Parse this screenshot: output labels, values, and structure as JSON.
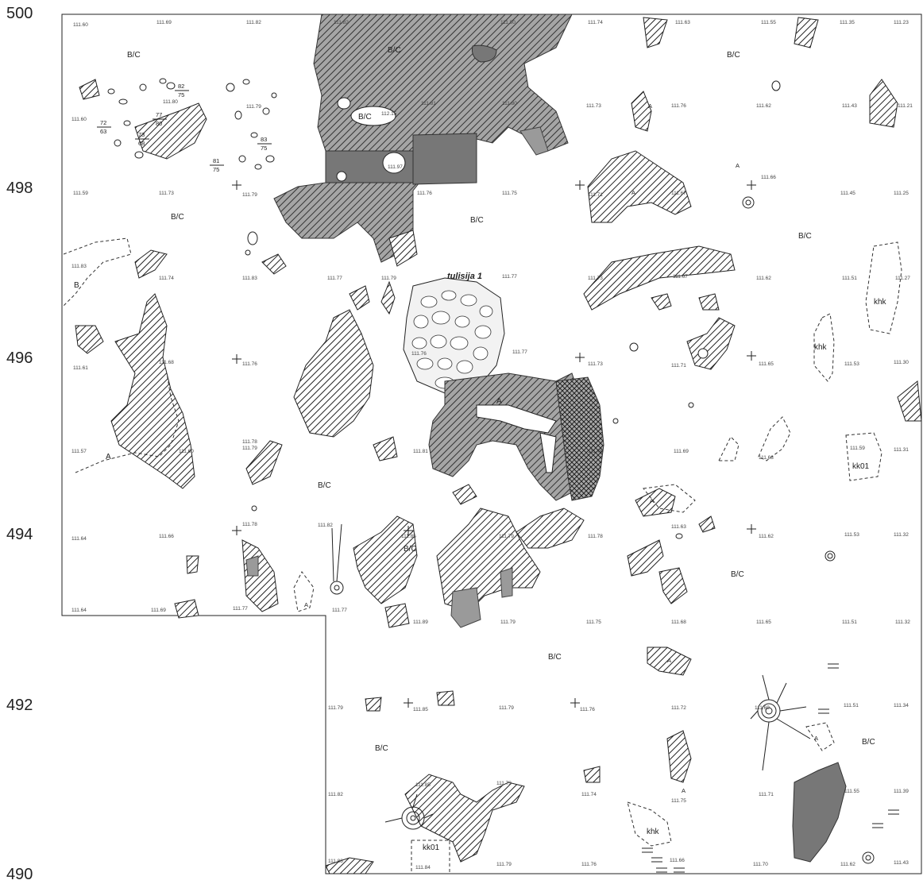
{
  "y_axis": [
    "500",
    "498",
    "496",
    "494",
    "492",
    "490"
  ],
  "special_label": "tulisija 1",
  "zone_labels": {
    "bc": "B/C",
    "a": "A",
    "b": "B",
    "khk": "khk",
    "kk01": "kk01"
  },
  "fractions": [
    {
      "num": "82",
      "den": "75"
    },
    {
      "num": "77",
      "den": "80"
    },
    {
      "num": "72",
      "den": "63"
    },
    {
      "num": "73",
      "den": "68"
    },
    {
      "num": "83",
      "den": "75"
    },
    {
      "num": "81",
      "den": "75"
    }
  ],
  "elevations": {
    "r0": [
      "111.60",
      "111.69",
      "111.82",
      "111.82",
      "111.80",
      "111.74",
      "111.63",
      "111.55",
      "111.35",
      "111.23"
    ],
    "r1": [
      "111.60",
      "111.80",
      "111.79",
      "112.15",
      "111.81",
      "111.80",
      "111.73",
      "111.76",
      "111.62",
      "111.43",
      "111.21"
    ],
    "r2": [
      "111.59",
      "111.73",
      "111.79",
      "111.97",
      "111.76",
      "111.75",
      "111.71",
      "111.67",
      "111.66",
      "111.45",
      "111.25"
    ],
    "r3": [
      "111.83",
      "111.74",
      "111.83",
      "111.77",
      "111.79",
      "111.77",
      "111.73",
      "111.67",
      "111.62",
      "111.51",
      "111.27"
    ],
    "r4": [
      "111.61",
      "111.68",
      "111.76",
      "111.76",
      "111.77",
      "111.73",
      "111.71",
      "111.65",
      "111.53",
      "111.30"
    ],
    "r5": [
      "111.57",
      "111.60",
      "111.78",
      "111.79",
      "111.81",
      "111.76",
      "111.69",
      "111.63",
      "111.59",
      "111.31"
    ],
    "r6": [
      "111.64",
      "111.66",
      "111.78",
      "111.82",
      "111.85",
      "111.79",
      "111.78",
      "111.63",
      "111.62",
      "111.53",
      "111.32"
    ],
    "r7": [
      "111.64",
      "111.69",
      "111.77",
      "111.77",
      "111.89",
      "111.79",
      "111.75",
      "111.68",
      "111.65",
      "111.51",
      "111.32"
    ],
    "r8": [
      "111.79",
      "111.85",
      "111.79",
      "111.76",
      "111.72",
      "111.69",
      "111.51",
      "111.34"
    ],
    "r9": [
      "111.82",
      "111.85",
      "111.73",
      "111.74",
      "111.75",
      "111.71",
      "111.55",
      "111.39"
    ],
    "r10": [
      "111.88",
      "111.84",
      "111.79",
      "111.76",
      "111.66",
      "111.70",
      "111.62",
      "111.43"
    ]
  }
}
